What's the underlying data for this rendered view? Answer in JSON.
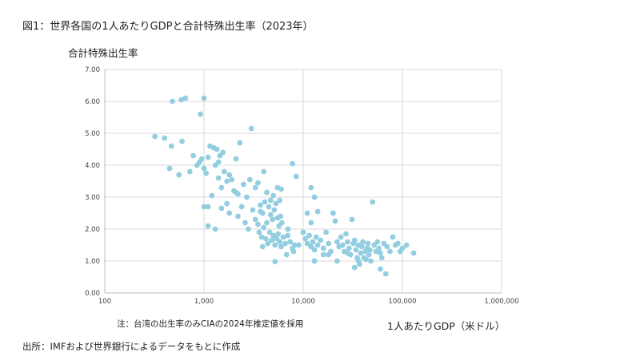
{
  "figure": {
    "title": "図1：世界各国の1人あたりGDPと合計特殊出生率（2023年）",
    "note": "注：台湾の出生率のみCIAの2024年推定値を採用",
    "source": "出所：IMFおよび世界銀行によるデータをもとに作成"
  },
  "colors": {
    "point": "#92cde0",
    "grid": "#d9d9d9",
    "axis": "#bfbfbf"
  },
  "chart_data": {
    "type": "scatter",
    "xlabel": "1人あたりGDP（米ドル）",
    "ylabel": "合計特殊出生率",
    "xscale": "log",
    "xlim": [
      100,
      1000000
    ],
    "ylim": [
      0,
      7
    ],
    "xticks": [
      100,
      1000,
      10000,
      100000,
      1000000
    ],
    "xtick_labels": [
      "100",
      "1,000",
      "10,000",
      "100,000",
      "1,000,000"
    ],
    "yticks": [
      0,
      1,
      2,
      3,
      4,
      5,
      6,
      7
    ],
    "ytick_labels": [
      "0.00",
      "1.00",
      "2.00",
      "3.00",
      "4.00",
      "5.00",
      "6.00",
      "7.00"
    ],
    "grid": true,
    "points": [
      [
        320,
        4.9
      ],
      [
        400,
        4.85
      ],
      [
        470,
        4.6
      ],
      [
        450,
        3.9
      ],
      [
        480,
        6.0
      ],
      [
        590,
        6.05
      ],
      [
        650,
        6.1
      ],
      [
        600,
        4.75
      ],
      [
        560,
        3.7
      ],
      [
        720,
        3.8
      ],
      [
        780,
        4.3
      ],
      [
        850,
        4.0
      ],
      [
        900,
        4.1
      ],
      [
        950,
        4.2
      ],
      [
        1000,
        6.1
      ],
      [
        920,
        5.6
      ],
      [
        1000,
        3.9
      ],
      [
        1050,
        3.75
      ],
      [
        1100,
        4.25
      ],
      [
        1150,
        4.6
      ],
      [
        1250,
        4.55
      ],
      [
        1350,
        4.5
      ],
      [
        1450,
        4.3
      ],
      [
        1550,
        4.4
      ],
      [
        1300,
        4.0
      ],
      [
        1400,
        4.1
      ],
      [
        1600,
        3.8
      ],
      [
        1200,
        3.05
      ],
      [
        1100,
        2.7
      ],
      [
        1000,
        2.7
      ],
      [
        1100,
        2.1
      ],
      [
        1300,
        2.0
      ],
      [
        1400,
        3.6
      ],
      [
        1500,
        3.3
      ],
      [
        1700,
        3.5
      ],
      [
        1800,
        3.7
      ],
      [
        1900,
        3.55
      ],
      [
        2000,
        3.2
      ],
      [
        2100,
        3.15
      ],
      [
        2200,
        3.1
      ],
      [
        2300,
        4.7
      ],
      [
        2100,
        4.2
      ],
      [
        2500,
        3.4
      ],
      [
        2700,
        3.0
      ],
      [
        2900,
        3.55
      ],
      [
        3000,
        5.15
      ],
      [
        3300,
        3.3
      ],
      [
        3500,
        3.45
      ],
      [
        3700,
        2.55
      ],
      [
        4000,
        3.8
      ],
      [
        4300,
        3.15
      ],
      [
        4700,
        2.9
      ],
      [
        5000,
        3.05
      ],
      [
        5500,
        3.3
      ],
      [
        5800,
        2.9
      ],
      [
        6000,
        3.25
      ],
      [
        2200,
        2.4
      ],
      [
        1800,
        2.5
      ],
      [
        1500,
        2.65
      ],
      [
        1700,
        2.8
      ],
      [
        2400,
        2.7
      ],
      [
        2600,
        2.2
      ],
      [
        2800,
        2.0
      ],
      [
        3100,
        2.6
      ],
      [
        3300,
        2.3
      ],
      [
        3500,
        2.15
      ],
      [
        3700,
        2.75
      ],
      [
        3900,
        2.5
      ],
      [
        4100,
        2.85
      ],
      [
        4300,
        2.2
      ],
      [
        4500,
        2.7
      ],
      [
        4700,
        2.45
      ],
      [
        4900,
        2.3
      ],
      [
        5100,
        2.6
      ],
      [
        5300,
        2.8
      ],
      [
        5500,
        2.35
      ],
      [
        5700,
        2.1
      ],
      [
        5900,
        2.4
      ],
      [
        6100,
        2.2
      ],
      [
        3600,
        1.9
      ],
      [
        3800,
        1.75
      ],
      [
        4000,
        2.05
      ],
      [
        4200,
        1.7
      ],
      [
        4400,
        1.55
      ],
      [
        4600,
        1.9
      ],
      [
        4800,
        1.65
      ],
      [
        5000,
        1.8
      ],
      [
        5200,
        1.5
      ],
      [
        5400,
        1.7
      ],
      [
        5600,
        1.85
      ],
      [
        5800,
        1.6
      ],
      [
        6000,
        1.45
      ],
      [
        6300,
        1.75
      ],
      [
        6600,
        1.55
      ],
      [
        7000,
        1.8
      ],
      [
        7400,
        1.6
      ],
      [
        7800,
        1.4
      ],
      [
        8200,
        1.5
      ],
      [
        3900,
        1.45
      ],
      [
        5200,
        0.98
      ],
      [
        6800,
        1.2
      ],
      [
        7000,
        2.0
      ],
      [
        8000,
        1.3
      ],
      [
        9000,
        1.5
      ],
      [
        7800,
        4.05
      ],
      [
        8500,
        3.65
      ],
      [
        12000,
        3.3
      ],
      [
        13000,
        3.0
      ],
      [
        14000,
        2.55
      ],
      [
        12000,
        2.2
      ],
      [
        11000,
        2.5
      ],
      [
        10000,
        1.9
      ],
      [
        10500,
        1.7
      ],
      [
        11000,
        1.55
      ],
      [
        11500,
        1.8
      ],
      [
        12000,
        1.45
      ],
      [
        12500,
        1.6
      ],
      [
        13000,
        1.35
      ],
      [
        13500,
        1.75
      ],
      [
        14000,
        1.5
      ],
      [
        15000,
        1.65
      ],
      [
        16000,
        1.4
      ],
      [
        17000,
        1.9
      ],
      [
        18000,
        1.55
      ],
      [
        19000,
        1.3
      ],
      [
        20000,
        2.5
      ],
      [
        21000,
        2.25
      ],
      [
        22000,
        1.6
      ],
      [
        23000,
        1.45
      ],
      [
        24000,
        1.75
      ],
      [
        25000,
        1.5
      ],
      [
        26000,
        1.3
      ],
      [
        27000,
        1.85
      ],
      [
        28000,
        1.6
      ],
      [
        29000,
        1.4
      ],
      [
        30000,
        1.2
      ],
      [
        31000,
        2.3
      ],
      [
        32000,
        1.55
      ],
      [
        33000,
        1.65
      ],
      [
        34000,
        1.35
      ],
      [
        35000,
        1.1
      ],
      [
        36000,
        1.5
      ],
      [
        37000,
        0.9
      ],
      [
        38000,
        1.25
      ],
      [
        39000,
        1.45
      ],
      [
        40000,
        1.6
      ],
      [
        41000,
        1.1
      ],
      [
        42000,
        1.3
      ],
      [
        43000,
        1.05
      ],
      [
        44000,
        1.4
      ],
      [
        45000,
        1.55
      ],
      [
        46000,
        1.2
      ],
      [
        47000,
        1.35
      ],
      [
        48000,
        1.0
      ],
      [
        50000,
        2.85
      ],
      [
        52000,
        1.5
      ],
      [
        54000,
        1.3
      ],
      [
        56000,
        1.6
      ],
      [
        58000,
        1.4
      ],
      [
        60000,
        1.25
      ],
      [
        62000,
        1.1
      ],
      [
        65000,
        1.55
      ],
      [
        68000,
        0.6
      ],
      [
        70000,
        1.45
      ],
      [
        75000,
        1.3
      ],
      [
        80000,
        1.75
      ],
      [
        85000,
        1.5
      ],
      [
        90000,
        1.55
      ],
      [
        95000,
        1.3
      ],
      [
        100000,
        1.4
      ],
      [
        110000,
        1.5
      ],
      [
        130000,
        1.25
      ],
      [
        18000,
        1.2
      ],
      [
        22000,
        1.0
      ],
      [
        28000,
        1.25
      ],
      [
        33000,
        0.8
      ],
      [
        60000,
        0.75
      ],
      [
        13000,
        1.0
      ],
      [
        16000,
        1.2
      ],
      [
        36000,
        1.0
      ]
    ]
  }
}
